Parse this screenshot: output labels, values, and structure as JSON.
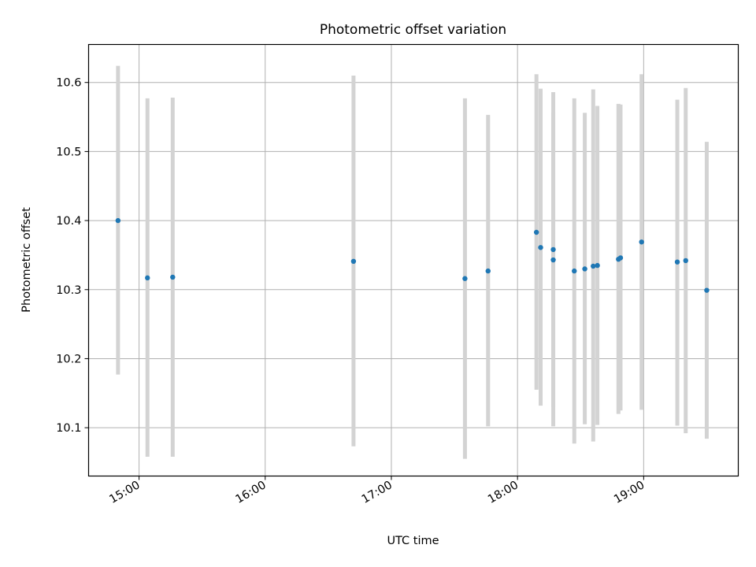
{
  "chart_data": {
    "type": "scatter",
    "title": "Photometric offset variation",
    "xlabel": "UTC time",
    "ylabel": "Photometric offset",
    "xlim": [
      "14:36",
      "19:45"
    ],
    "ylim": [
      10.03,
      10.655
    ],
    "x_ticks": [
      "15:00",
      "16:00",
      "17:00",
      "18:00",
      "19:00"
    ],
    "y_ticks": [
      10.1,
      10.2,
      10.3,
      10.4,
      10.5,
      10.6
    ],
    "grid": true,
    "colors": {
      "point": "#1f77b4",
      "errorbar": "#d3d3d3",
      "grid": "#b0b0b0"
    },
    "points": [
      {
        "x": "14:50",
        "y": 10.4,
        "yerr": [
          10.177,
          10.624
        ]
      },
      {
        "x": "15:04",
        "y": 10.317,
        "yerr": [
          10.058,
          10.577
        ]
      },
      {
        "x": "15:16",
        "y": 10.318,
        "yerr": [
          10.058,
          10.578
        ]
      },
      {
        "x": "16:42",
        "y": 10.341,
        "yerr": [
          10.073,
          10.61
        ]
      },
      {
        "x": "17:35",
        "y": 10.316,
        "yerr": [
          10.055,
          10.577
        ]
      },
      {
        "x": "17:46",
        "y": 10.327,
        "yerr": [
          10.102,
          10.553
        ]
      },
      {
        "x": "18:09",
        "y": 10.383,
        "yerr": [
          10.155,
          10.612
        ]
      },
      {
        "x": "18:11",
        "y": 10.361,
        "yerr": [
          10.132,
          10.591
        ]
      },
      {
        "x": "18:17",
        "y": 10.343,
        "yerr": [
          10.13,
          10.557
        ]
      },
      {
        "x": "18:17",
        "y": 10.358,
        "yerr": [
          10.102,
          10.586
        ]
      },
      {
        "x": "18:27",
        "y": 10.327,
        "yerr": [
          10.077,
          10.577
        ]
      },
      {
        "x": "18:32",
        "y": 10.33,
        "yerr": [
          10.105,
          10.556
        ]
      },
      {
        "x": "18:36",
        "y": 10.334,
        "yerr": [
          10.08,
          10.59
        ]
      },
      {
        "x": "18:38",
        "y": 10.335,
        "yerr": [
          10.104,
          10.566
        ]
      },
      {
        "x": "18:48",
        "y": 10.344,
        "yerr": [
          10.12,
          10.569
        ]
      },
      {
        "x": "18:49",
        "y": 10.346,
        "yerr": [
          10.125,
          10.568
        ]
      },
      {
        "x": "18:59",
        "y": 10.369,
        "yerr": [
          10.126,
          10.612
        ]
      },
      {
        "x": "19:16",
        "y": 10.34,
        "yerr": [
          10.103,
          10.575
        ]
      },
      {
        "x": "19:20",
        "y": 10.342,
        "yerr": [
          10.092,
          10.592
        ]
      },
      {
        "x": "19:30",
        "y": 10.299,
        "yerr": [
          10.084,
          10.514
        ]
      }
    ]
  }
}
